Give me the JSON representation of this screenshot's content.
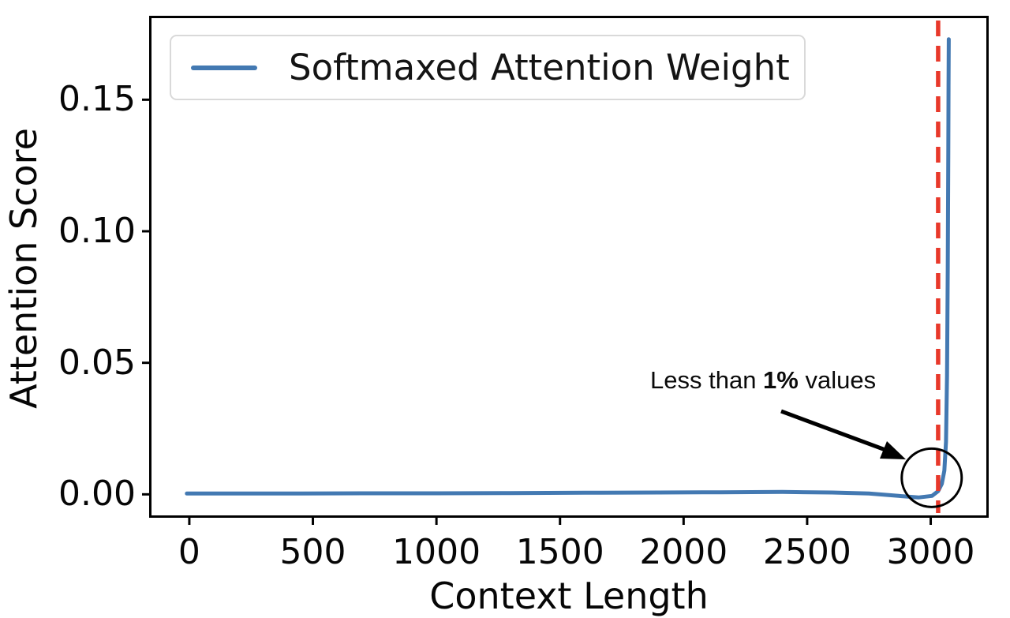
{
  "chart_data": {
    "type": "line",
    "title": "",
    "xlabel": "Context Length",
    "ylabel": "Attention Score",
    "xlim": [
      -153,
      3225
    ],
    "ylim": [
      -0.008,
      0.181
    ],
    "grid": false,
    "legend_position": "upper left",
    "x_ticks": {
      "values": [
        0,
        500,
        1000,
        1500,
        2000,
        2500,
        3000
      ],
      "labels": [
        "0",
        "500",
        "1000",
        "1500",
        "2000",
        "2500",
        "3000"
      ]
    },
    "y_ticks": {
      "values": [
        0.0,
        0.05,
        0.1,
        0.15
      ],
      "labels": [
        "0.00",
        "0.05",
        "0.10",
        "0.15"
      ]
    },
    "series": [
      {
        "name": "Softmaxed Attention Weight",
        "color": "#4379b2",
        "points": [
          [
            -10,
            0.0003
          ],
          [
            150,
            0.0003
          ],
          [
            400,
            0.0003
          ],
          [
            700,
            0.0004
          ],
          [
            1000,
            0.0004
          ],
          [
            1300,
            0.0005
          ],
          [
            1600,
            0.0006
          ],
          [
            1900,
            0.0007
          ],
          [
            2150,
            0.0008
          ],
          [
            2400,
            0.0009
          ],
          [
            2600,
            0.0007
          ],
          [
            2750,
            0.0003
          ],
          [
            2870,
            -0.0006
          ],
          [
            2950,
            -0.0012
          ],
          [
            3005,
            -0.0006
          ],
          [
            3030,
            0.0012
          ],
          [
            3045,
            0.004
          ],
          [
            3055,
            0.009
          ],
          [
            3062,
            0.02
          ],
          [
            3066,
            0.045
          ],
          [
            3069,
            0.085
          ],
          [
            3071,
            0.13
          ],
          [
            3072,
            0.155
          ],
          [
            3073,
            0.173
          ]
        ]
      }
    ],
    "vline": {
      "x": 3030,
      "color": "#e8382a",
      "style": "dashed"
    },
    "annotation": {
      "text_pre": "Less than ",
      "text_bold": "1%",
      "text_post": " values",
      "arrow_color": "#000000",
      "circle_color": "#000000",
      "circle_at": {
        "x": 3004,
        "y": 0.0063
      }
    }
  }
}
